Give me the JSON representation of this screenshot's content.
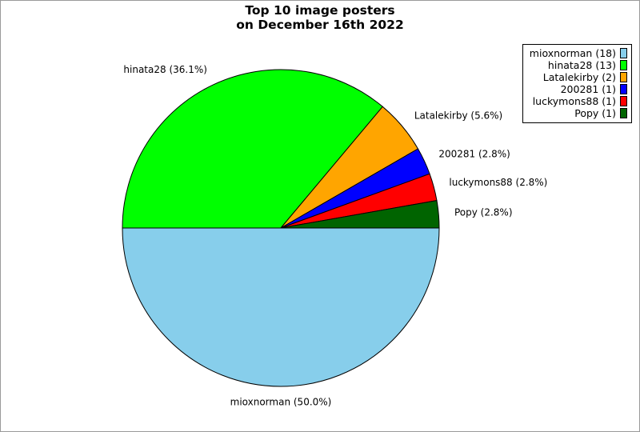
{
  "chart_data": {
    "type": "pie",
    "title": [
      "Top 10 image posters",
      "on December 16th 2022"
    ],
    "start_angle_deg": 0,
    "direction": "clockwise",
    "legend_placement": "top-right",
    "slices": [
      {
        "name": "mioxnorman",
        "value": 18,
        "percent": "50.0%",
        "color": "#87ceeb",
        "legend": "mioxnorman (18)",
        "label": "mioxnorman (50.0%)"
      },
      {
        "name": "hinata28",
        "value": 13,
        "percent": "36.1%",
        "color": "#00ff00",
        "legend": "hinata28 (13)",
        "label": "hinata28 (36.1%)"
      },
      {
        "name": "Latalekirby",
        "value": 2,
        "percent": "5.6%",
        "color": "#ffa500",
        "legend": "Latalekirby (2)",
        "label": "Latalekirby (5.6%)"
      },
      {
        "name": "200281",
        "value": 1,
        "percent": "2.8%",
        "color": "#0000ff",
        "legend": "200281 (1)",
        "label": "200281 (2.8%)"
      },
      {
        "name": "luckymons88",
        "value": 1,
        "percent": "2.8%",
        "color": "#ff0000",
        "legend": "luckymons88 (1)",
        "label": "luckymons88 (2.8%)"
      },
      {
        "name": "Popy",
        "value": 1,
        "percent": "2.8%",
        "color": "#006400",
        "legend": "Popy (1)",
        "label": "Popy (2.8%)"
      }
    ]
  }
}
